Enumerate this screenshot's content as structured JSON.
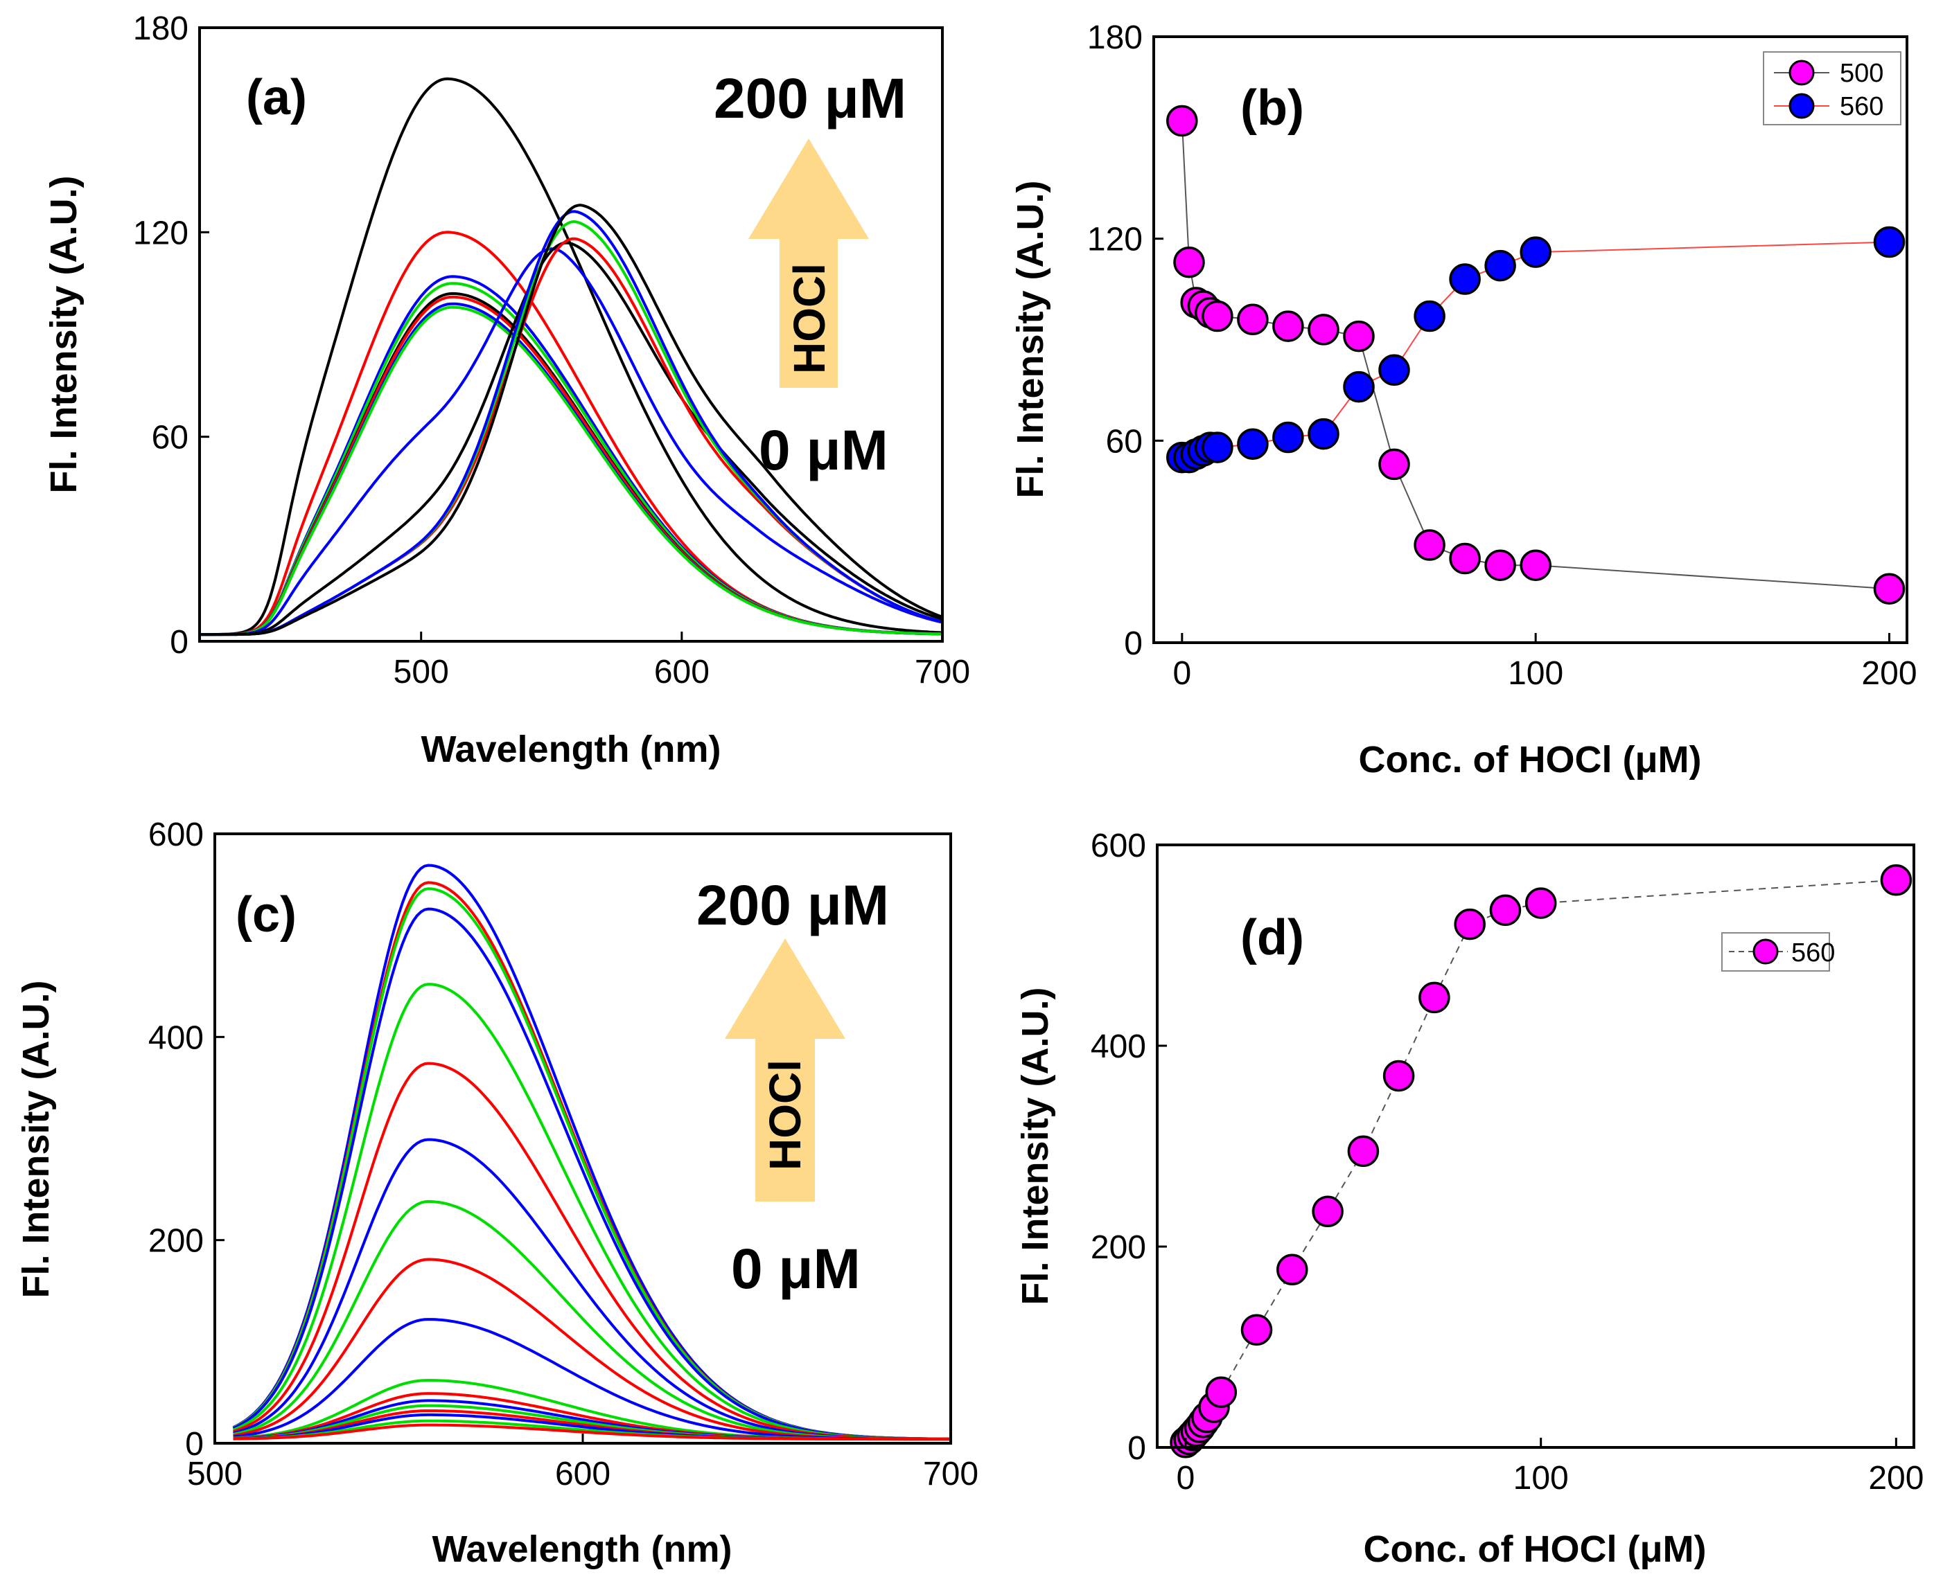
{
  "chart_data": [
    {
      "panel": "(a)",
      "type": "line",
      "xlabel": "Wavelength (nm)",
      "ylabel": "Fl. Intensity (A.U.)",
      "xlim": [
        415,
        700
      ],
      "ylim": [
        0,
        180
      ],
      "xticks": [
        500,
        600,
        700
      ],
      "yticks": [
        0,
        60,
        120,
        180
      ],
      "annotations": {
        "top": "200 μM",
        "bottom": "0 μM",
        "arrow": "HOCl"
      },
      "series": [
        {
          "color": "#000000",
          "peaks": [
            {
              "x": 510,
              "y": 163,
              "w": 45
            }
          ]
        },
        {
          "color": "#ff0000",
          "peaks": [
            {
              "x": 510,
              "y": 118,
              "w": 42
            }
          ]
        },
        {
          "color": "#0000ff",
          "peaks": [
            {
              "x": 512,
              "y": 105,
              "w": 42
            }
          ]
        },
        {
          "color": "#00dd00",
          "peaks": [
            {
              "x": 512,
              "y": 103,
              "w": 42
            }
          ]
        },
        {
          "color": "#000000",
          "peaks": [
            {
              "x": 512,
              "y": 100,
              "w": 42
            }
          ]
        },
        {
          "color": "#ff0000",
          "peaks": [
            {
              "x": 512,
              "y": 99,
              "w": 42
            }
          ]
        },
        {
          "color": "#0000ff",
          "peaks": [
            {
              "x": 512,
              "y": 97,
              "w": 42
            }
          ]
        },
        {
          "color": "#00dd00",
          "peaks": [
            {
              "x": 512,
              "y": 96,
              "w": 42
            }
          ]
        },
        {
          "color": "#0000ff",
          "peaks": [
            {
              "x": 505,
              "y": 55,
              "w": 40
            },
            {
              "x": 555,
              "y": 78,
              "w": 28
            },
            {
              "x": 630,
              "y": 20,
              "w": 30
            }
          ]
        },
        {
          "color": "#000000",
          "peaks": [
            {
              "x": 505,
              "y": 30,
              "w": 40
            },
            {
              "x": 558,
              "y": 97,
              "w": 30
            },
            {
              "x": 630,
              "y": 25,
              "w": 30
            }
          ]
        },
        {
          "color": "#ff0000",
          "peaks": [
            {
              "x": 500,
              "y": 20,
              "w": 35
            },
            {
              "x": 560,
              "y": 108,
              "w": 30
            },
            {
              "x": 635,
              "y": 20,
              "w": 28
            }
          ]
        },
        {
          "color": "#00dd00",
          "peaks": [
            {
              "x": 500,
              "y": 20,
              "w": 35
            },
            {
              "x": 560,
              "y": 113,
              "w": 30
            },
            {
              "x": 635,
              "y": 20,
              "w": 28
            }
          ]
        },
        {
          "color": "#0000ff",
          "peaks": [
            {
              "x": 500,
              "y": 20,
              "w": 35
            },
            {
              "x": 560,
              "y": 116,
              "w": 30
            },
            {
              "x": 635,
              "y": 20,
              "w": 28
            }
          ]
        },
        {
          "color": "#000000",
          "peaks": [
            {
              "x": 500,
              "y": 18,
              "w": 35
            },
            {
              "x": 562,
              "y": 119,
              "w": 30
            },
            {
              "x": 635,
              "y": 28,
              "w": 28
            }
          ]
        }
      ]
    },
    {
      "panel": "(b)",
      "type": "scatter",
      "xlabel": "Conc. of HOCl (μM)",
      "ylabel": "Fl. Intensity (A.U.)",
      "xlim": [
        -8,
        205
      ],
      "ylim": [
        0,
        180
      ],
      "xticks": [
        0,
        100,
        200
      ],
      "yticks": [
        0,
        60,
        120,
        180
      ],
      "legend_position": "top-right",
      "series": [
        {
          "name": "500",
          "marker": "#ff00ff",
          "line": "#555555",
          "x": [
            0,
            2,
            4,
            6,
            8,
            10,
            20,
            30,
            40,
            50,
            60,
            70,
            80,
            90,
            100,
            200
          ],
          "y": [
            155,
            113,
            101,
            100,
            98,
            97,
            96,
            94,
            93,
            91,
            53,
            29,
            25,
            23,
            23,
            16
          ]
        },
        {
          "name": "560",
          "marker": "#0000ff",
          "line": "#ff4444",
          "x": [
            0,
            2,
            4,
            6,
            8,
            10,
            20,
            30,
            40,
            50,
            60,
            70,
            80,
            90,
            100,
            200
          ],
          "y": [
            55,
            55,
            56,
            57,
            58,
            58,
            59,
            61,
            62,
            76,
            81,
            97,
            108,
            112,
            116,
            119
          ]
        }
      ]
    },
    {
      "panel": "(c)",
      "type": "line",
      "xlabel": "Wavelength (nm)",
      "ylabel": "Fl. Intensity (A.U.)",
      "xlim": [
        500,
        700
      ],
      "ylim": [
        0,
        600
      ],
      "xticks": [
        500,
        600,
        700
      ],
      "yticks": [
        0,
        200,
        400,
        600
      ],
      "annotations": {
        "top": "200 μM",
        "bottom": "0 μM",
        "arrow": "HOCl"
      },
      "series": [
        {
          "color": "#0000ff",
          "peak": 565
        },
        {
          "color": "#ff0000",
          "peak": 548
        },
        {
          "color": "#00dd00",
          "peak": 542
        },
        {
          "color": "#0000ff",
          "peak": 522
        },
        {
          "color": "#00dd00",
          "peak": 448
        },
        {
          "color": "#ff0000",
          "peak": 370
        },
        {
          "color": "#0000ff",
          "peak": 295
        },
        {
          "color": "#00dd00",
          "peak": 234
        },
        {
          "color": "#ff0000",
          "peak": 177
        },
        {
          "color": "#0000ff",
          "peak": 118
        },
        {
          "color": "#00dd00",
          "peak": 58
        },
        {
          "color": "#ff0000",
          "peak": 45
        },
        {
          "color": "#0000ff",
          "peak": 38
        },
        {
          "color": "#00dd00",
          "peak": 33
        },
        {
          "color": "#ff0000",
          "peak": 28
        },
        {
          "color": "#0000ff",
          "peak": 24
        },
        {
          "color": "#00dd00",
          "peak": 18
        },
        {
          "color": "#ff0000",
          "peak": 14
        }
      ]
    },
    {
      "panel": "(d)",
      "type": "scatter",
      "xlabel": "Conc. of HOCl (μM)",
      "ylabel": "Fl. Intensity (A.U.)",
      "xlim": [
        -8,
        205
      ],
      "ylim": [
        0,
        600
      ],
      "xticks": [
        0,
        100,
        200
      ],
      "yticks": [
        0,
        200,
        400,
        600
      ],
      "legend_position": "right",
      "series": [
        {
          "name": "560",
          "marker": "#ff00ff",
          "line": "#555555",
          "x": [
            0,
            1,
            2,
            3,
            4,
            5,
            6,
            8,
            10,
            20,
            30,
            40,
            50,
            60,
            70,
            80,
            90,
            100,
            200
          ],
          "y": [
            5,
            8,
            12,
            16,
            20,
            25,
            30,
            40,
            55,
            117,
            177,
            235,
            295,
            370,
            448,
            521,
            535,
            542,
            565
          ]
        }
      ]
    }
  ]
}
